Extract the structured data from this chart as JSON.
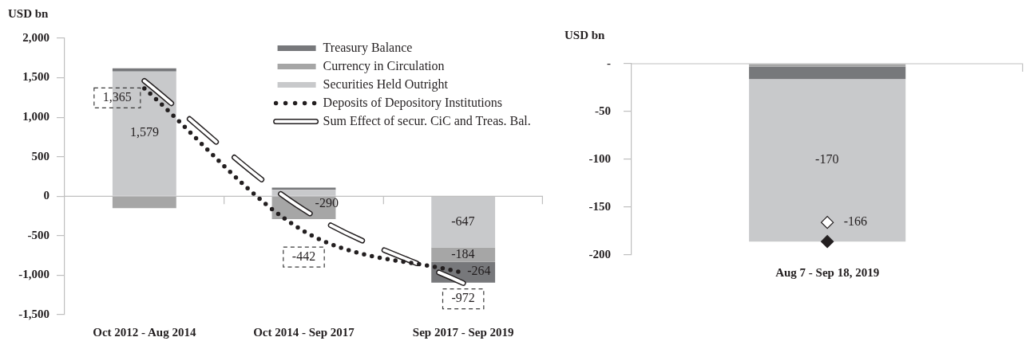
{
  "chart_data": [
    {
      "type": "bar",
      "stacked": true,
      "ylabel": "USD bn",
      "legend": "top right",
      "categories": [
        "Oct 2012 - Aug 2014",
        "Oct 2014 - Sep 2017",
        "Sep 2017 - Sep 2019"
      ],
      "ylim": [
        -1500,
        2000
      ],
      "yticks": [
        {
          "value": -1500,
          "label": "-1,500"
        },
        {
          "value": -1000,
          "label": "-1,000"
        },
        -500,
        0,
        500,
        {
          "value": 1000,
          "label": "1,000"
        },
        {
          "value": 1500,
          "label": "1,500"
        },
        {
          "value": 2000,
          "label": "2,000"
        }
      ],
      "series": [
        {
          "name": "Securities Held Outright",
          "color": "#c8c9cb",
          "values": [
            1579,
            80,
            -647
          ],
          "value_labels": [
            "1,579",
            null,
            "-647"
          ]
        },
        {
          "name": "Currency in Circulation",
          "color": "#a6a6a6",
          "values": [
            -150,
            -290,
            -184
          ],
          "value_labels": [
            null,
            "-290",
            "-184"
          ]
        },
        {
          "name": "Treasury Balance",
          "color": "#77787b",
          "values": [
            40,
            30,
            -264
          ],
          "value_labels": [
            null,
            null,
            "-264"
          ]
        },
        {
          "name": "Deposits of Depository Institutions",
          "type": "line",
          "color": "#231f20",
          "line_style": "dotted",
          "values": [
            1365,
            -442,
            -972
          ],
          "value_labels": [
            "1,365",
            "-442",
            "-972"
          ]
        },
        {
          "name": "Sum Effect of secur. CiC and Treas. Bal.",
          "type": "line",
          "color": "#ffffff",
          "line_style": "dashed",
          "values": [
            1460,
            -170,
            -1100
          ]
        }
      ]
    },
    {
      "type": "bar",
      "stacked": true,
      "ylabel": "USD bn",
      "categories": [
        "Aug 7 - Sep 18, 2019"
      ],
      "ylim": [
        -200,
        0
      ],
      "yticks": [
        {
          "value": 0,
          "label": "-"
        },
        -50,
        -100,
        -150,
        -200
      ],
      "series": [
        {
          "color": "#a6a6a6",
          "values": [
            -3
          ]
        },
        {
          "color": "#77787b",
          "values": [
            -13
          ]
        },
        {
          "color": "#c8c9cb",
          "values": [
            -170
          ],
          "value_labels": [
            "-170"
          ]
        },
        {
          "type": "scatter",
          "color": "#ffffff",
          "marker": "diamond",
          "x": [
            "Aug 7 - Sep 18, 2019"
          ],
          "values": [
            -166
          ],
          "value_labels": [
            "-166"
          ]
        },
        {
          "type": "scatter",
          "color": "#231f20",
          "marker": "diamond",
          "x": [
            "Aug 7 - Sep 18, 2019"
          ],
          "values": [
            -186
          ]
        }
      ]
    }
  ]
}
